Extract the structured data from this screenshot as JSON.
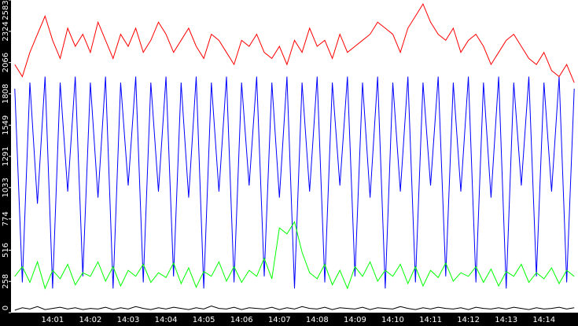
{
  "chart_data": {
    "type": "line",
    "categories": [
      null,
      null,
      null,
      null,
      null,
      "14:01",
      null,
      null,
      null,
      null,
      "14:02",
      null,
      null,
      null,
      null,
      "14:03",
      null,
      null,
      null,
      null,
      "14:04",
      null,
      null,
      null,
      null,
      "14:05",
      null,
      null,
      null,
      null,
      "14:06",
      null,
      null,
      null,
      null,
      "14:07",
      null,
      null,
      null,
      null,
      "14:08",
      null,
      null,
      null,
      null,
      "14:09",
      null,
      null,
      null,
      null,
      "14:10",
      null,
      null,
      null,
      null,
      "14:11",
      null,
      null,
      null,
      null,
      "14:12",
      null,
      null,
      null,
      null,
      "14:13",
      null,
      null,
      null,
      null,
      "14:14",
      null,
      null,
      null,
      null
    ],
    "series": [
      {
        "color": "#0000ff",
        "values": [
          1850,
          250,
          1900,
          900,
          1950,
          200,
          1900,
          1000,
          1950,
          300,
          1900,
          950,
          1950,
          200,
          1900,
          1050,
          1950,
          250,
          1900,
          1000,
          1950,
          300,
          1900,
          950,
          1950,
          200,
          1900,
          1000,
          1950,
          250,
          1900,
          1050,
          1950,
          300,
          1900,
          950,
          1950,
          200,
          1900,
          1000,
          1950,
          250,
          1900,
          1050,
          1950,
          300,
          1900,
          950,
          1950,
          200,
          1900,
          1000,
          1950,
          250,
          1900,
          1050,
          1950,
          300,
          1900,
          1000,
          1950,
          250,
          1900,
          950,
          1950,
          200,
          1900,
          1050,
          1950,
          300,
          1900,
          1000,
          1950,
          250,
          1850
        ]
      },
      {
        "color": "#ff0000",
        "values": [
          2050,
          1950,
          2150,
          2300,
          2450,
          2250,
          2100,
          2350,
          2200,
          2300,
          2150,
          2400,
          2250,
          2100,
          2300,
          2200,
          2350,
          2150,
          2250,
          2400,
          2300,
          2150,
          2250,
          2350,
          2200,
          2100,
          2300,
          2250,
          2150,
          2050,
          2250,
          2200,
          2300,
          2150,
          2100,
          2200,
          2050,
          2250,
          2150,
          2350,
          2200,
          2250,
          2100,
          2300,
          2150,
          2200,
          2250,
          2300,
          2400,
          2350,
          2300,
          2150,
          2350,
          2450,
          2550,
          2400,
          2300,
          2250,
          2350,
          2150,
          2250,
          2300,
          2200,
          2050,
          2150,
          2250,
          2300,
          2200,
          2100,
          2050,
          2150,
          2000,
          1950,
          2050,
          1900
        ]
      },
      {
        "color": "#00ff00",
        "values": [
          300,
          380,
          250,
          420,
          200,
          350,
          280,
          400,
          230,
          330,
          300,
          420,
          260,
          380,
          220,
          350,
          300,
          400,
          250,
          330,
          290,
          410,
          240,
          370,
          210,
          340,
          300,
          420,
          260,
          380,
          250,
          350,
          300,
          450,
          280,
          700,
          650,
          750,
          500,
          330,
          280,
          400,
          230,
          350,
          200,
          380,
          300,
          420,
          260,
          350,
          300,
          400,
          240,
          380,
          220,
          350,
          290,
          410,
          260,
          330,
          300,
          380,
          250,
          360,
          220,
          340,
          300,
          400,
          250,
          330,
          280,
          370,
          240,
          350,
          300
        ]
      },
      {
        "color": "#000000",
        "values": [
          20,
          40,
          30,
          50,
          25,
          35,
          45,
          30,
          40,
          25,
          35,
          30,
          45,
          25,
          40,
          30,
          50,
          35,
          25,
          40,
          30,
          45,
          35,
          25,
          40,
          30,
          55,
          35,
          30,
          45,
          25,
          40,
          35,
          30,
          45,
          25,
          40,
          30,
          50,
          35,
          30,
          45,
          25,
          40,
          35,
          30,
          45,
          25,
          40,
          35,
          30,
          50,
          35,
          25,
          40,
          30,
          45,
          35,
          30,
          40,
          25,
          45,
          35,
          30,
          40,
          30,
          45,
          35,
          25,
          40,
          30,
          35,
          45,
          30,
          40
        ]
      }
    ],
    "ylim": [
      0,
      2583
    ],
    "yticks": [
      0,
      258,
      516,
      774,
      1033,
      1291,
      1549,
      1808,
      2066,
      2324,
      2583
    ]
  }
}
